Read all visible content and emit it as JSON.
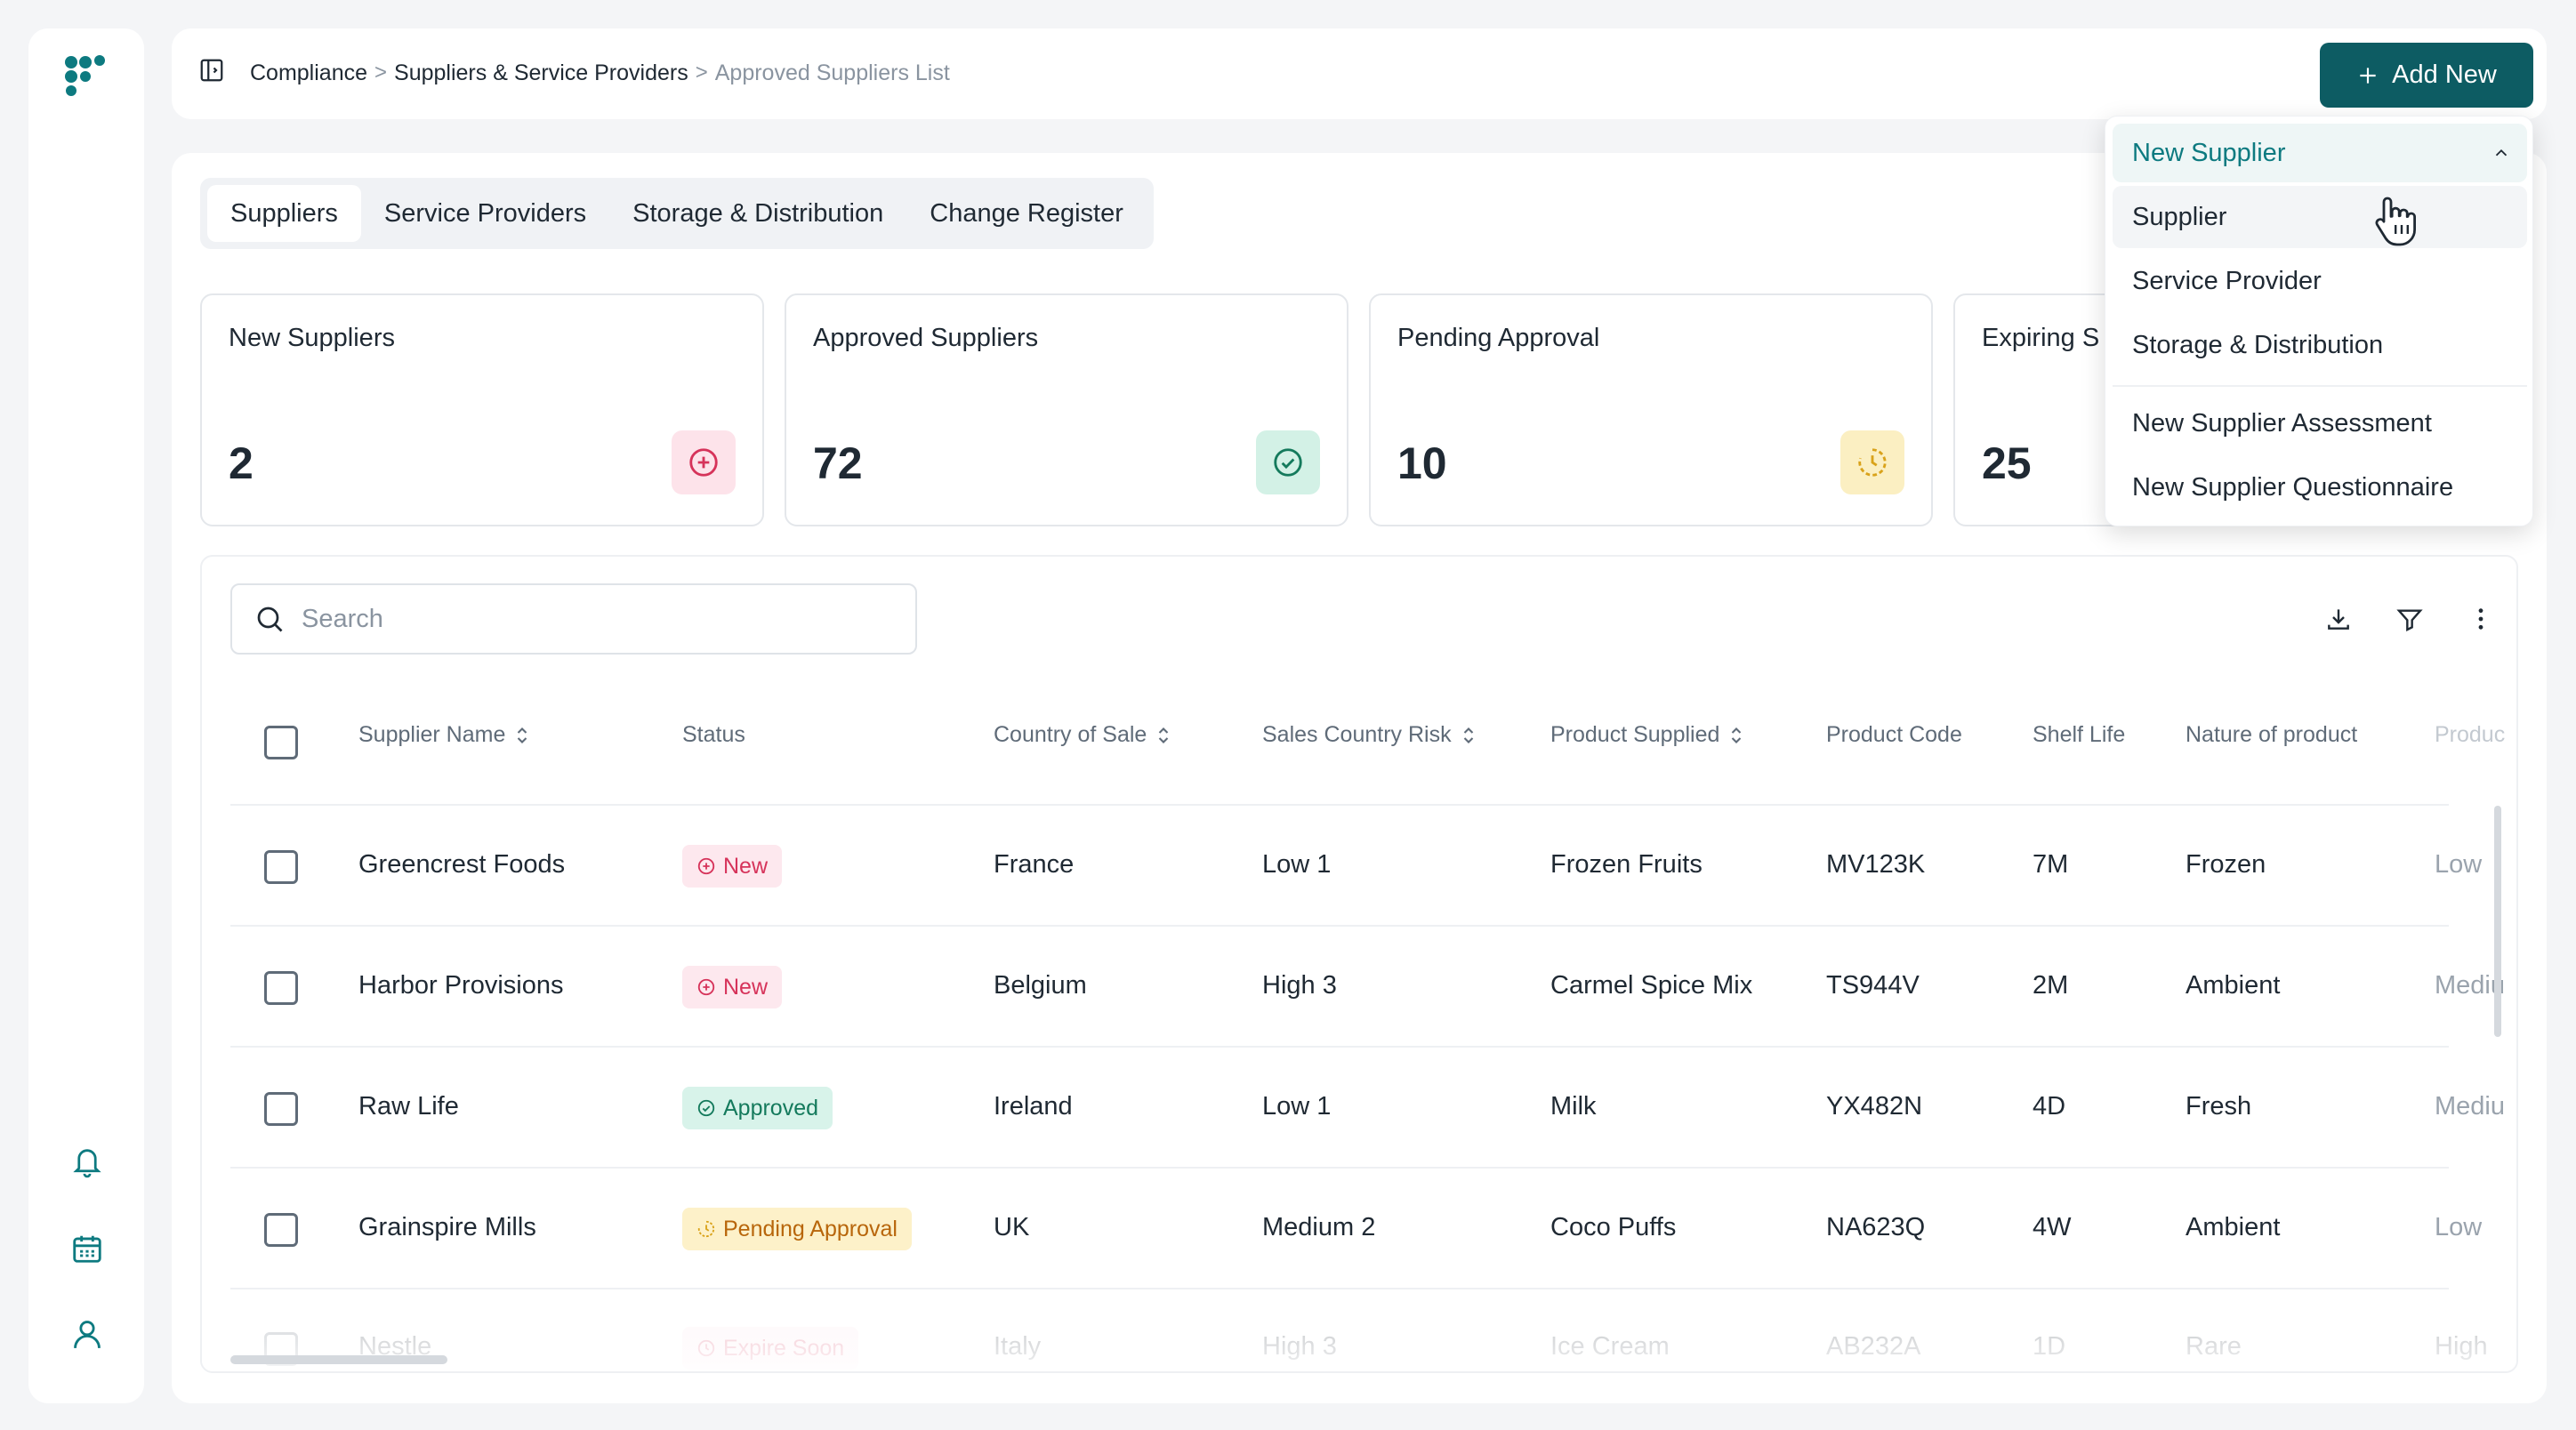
{
  "breadcrumb": {
    "items": [
      "Compliance",
      "Suppliers & Service Providers"
    ],
    "current": "Approved Suppliers List",
    "separator": ">"
  },
  "header": {
    "add_button_label": "Add New"
  },
  "tabs": [
    "Suppliers",
    "Service Providers",
    "Storage & Distribution",
    "Change Register"
  ],
  "active_tab": "Suppliers",
  "cards": [
    {
      "title": "New Suppliers",
      "value": "2",
      "icon": "plus-circle-icon",
      "color": "#d6335a"
    },
    {
      "title": "Approved Suppliers",
      "value": "72",
      "icon": "check-circle-icon",
      "color": "#147a5c"
    },
    {
      "title": "Pending Approval",
      "value": "10",
      "icon": "clock-icon",
      "color": "#d9a21a"
    },
    {
      "title": "Expiring S",
      "value": "25"
    }
  ],
  "search": {
    "placeholder": "Search",
    "value": ""
  },
  "table": {
    "columns": [
      "Supplier Name",
      "Status",
      "Country of Sale",
      "Sales Country Risk",
      "Product Supplied",
      "Product Code",
      "Shelf Life",
      "Nature of product",
      "Produc"
    ],
    "rows": [
      {
        "name": "Greencrest Foods",
        "status": "New",
        "country": "France",
        "risk": "Low 1",
        "product": "Frozen Fruits",
        "code": "MV123K",
        "shelf": "7M",
        "nature": "Frozen",
        "extra": "Low"
      },
      {
        "name": "Harbor Provisions",
        "status": "New",
        "country": "Belgium",
        "risk": "High 3",
        "product": "Carmel Spice Mix",
        "code": "TS944V",
        "shelf": "2M",
        "nature": "Ambient",
        "extra": "Mediu"
      },
      {
        "name": "Raw Life",
        "status": "Approved",
        "country": "Ireland",
        "risk": "Low 1",
        "product": "Milk",
        "code": "YX482N",
        "shelf": "4D",
        "nature": "Fresh",
        "extra": "Mediu"
      },
      {
        "name": "Grainspire Mills",
        "status": "Pending Approval",
        "country": "UK",
        "risk": "Medium 2",
        "product": "Coco Puffs",
        "code": "NA623Q",
        "shelf": "4W",
        "nature": "Ambient",
        "extra": "Low"
      },
      {
        "name": "Nestle",
        "status": "Expire Soon",
        "country": "Italy",
        "risk": "High 3",
        "product": "Ice Cream",
        "code": "AB232A",
        "shelf": "1D",
        "nature": "Rare",
        "extra": "High"
      }
    ]
  },
  "dropdown": {
    "header": "New Supplier",
    "items": [
      "Supplier",
      "Service Provider",
      "Storage & Distribution"
    ],
    "extra_items": [
      "New Supplier Assessment",
      "New Supplier Questionnaire"
    ]
  },
  "colors": {
    "brand": "#0d5c63",
    "accent_text": "#0d7a80",
    "new": "#d6335a",
    "approved": "#147a5c",
    "pending": "#b8660b"
  }
}
